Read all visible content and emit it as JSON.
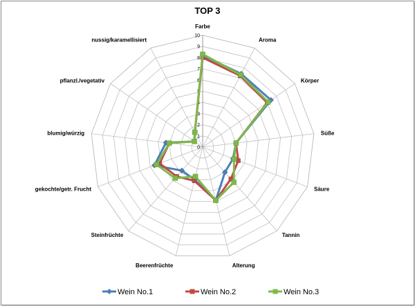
{
  "chart_data": {
    "type": "radar",
    "title": "TOP 3",
    "categories": [
      "Farbe",
      "Aroma",
      "Körper",
      "Süße",
      "Säure",
      "Tannin",
      "Alterung",
      "Beerenfrüchte",
      "Steinfrüchte",
      "gekochte/getr. Frucht",
      "blumig/würzig",
      "pflanzl./vegetativ",
      "nussig/karamellisiert"
    ],
    "rlim": [
      0,
      10
    ],
    "ticks": [
      "0",
      "1",
      "2",
      "3",
      "4",
      "5",
      "6",
      "7",
      "8",
      "9",
      "10"
    ],
    "grid": true,
    "legend_position": "bottom",
    "series": [
      {
        "name": "Wein No.1",
        "color": "#4a7ebb",
        "values": [
          8.2,
          7.4,
          7.4,
          3.0,
          2.9,
          3.0,
          4.9,
          3.0,
          2.8,
          4.6,
          3.3,
          0.9,
          1.5
        ]
      },
      {
        "name": "Wein No.2",
        "color": "#be4b48",
        "values": [
          8.0,
          7.2,
          7.0,
          3.0,
          3.4,
          3.8,
          4.9,
          3.1,
          3.5,
          4.1,
          3.0,
          0.9,
          1.5
        ]
      },
      {
        "name": "Wein No.3",
        "color": "#7eb84a",
        "values": [
          8.3,
          7.3,
          7.1,
          3.0,
          3.0,
          4.2,
          4.9,
          2.7,
          3.7,
          4.4,
          3.0,
          0.9,
          1.5
        ]
      }
    ]
  }
}
